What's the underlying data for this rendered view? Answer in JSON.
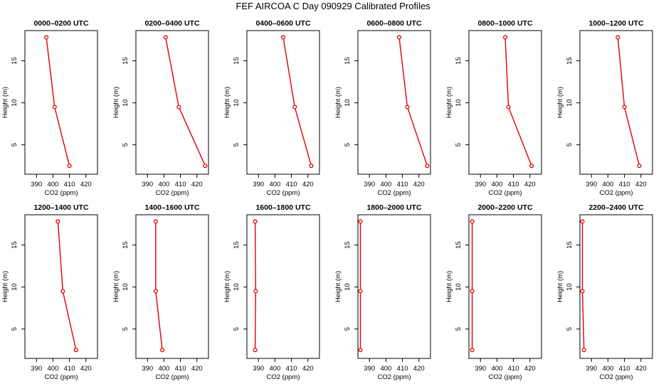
{
  "page": {
    "title": "FEF AIRCOA C  Day 090929  Calibrated Profiles"
  },
  "style": {
    "line_color": "#e00000",
    "axis_color": "#000000",
    "background": "#ffffff"
  },
  "chart_data": [
    {
      "type": "line",
      "title": "0000–0200 UTC",
      "xlabel": "CO2 (ppm)",
      "ylabel": "Height (m)",
      "xlim": [
        383,
        427
      ],
      "ylim": [
        1.5,
        18.6
      ],
      "xticks": [
        390,
        400,
        410,
        420
      ],
      "yticks": [
        5,
        10,
        15
      ],
      "series": [
        {
          "points": [
            {
              "x": 396,
              "y": 17.8
            },
            {
              "x": 401,
              "y": 9.5
            },
            {
              "x": 410,
              "y": 2.5
            }
          ]
        }
      ]
    },
    {
      "type": "line",
      "title": "0200–0400 UTC",
      "xlabel": "CO2 (ppm)",
      "ylabel": "Height (m)",
      "xlim": [
        383,
        427
      ],
      "ylim": [
        1.5,
        18.6
      ],
      "xticks": [
        390,
        400,
        410,
        420
      ],
      "yticks": [
        5,
        10,
        15
      ],
      "series": [
        {
          "points": [
            {
              "x": 401,
              "y": 17.8
            },
            {
              "x": 409,
              "y": 9.5
            },
            {
              "x": 425,
              "y": 2.5
            }
          ]
        }
      ]
    },
    {
      "type": "line",
      "title": "0400–0600 UTC",
      "xlabel": "CO2 (ppm)",
      "ylabel": "Height (m)",
      "xlim": [
        383,
        427
      ],
      "ylim": [
        1.5,
        18.6
      ],
      "xticks": [
        390,
        400,
        410,
        420
      ],
      "yticks": [
        5,
        10,
        15
      ],
      "series": [
        {
          "points": [
            {
              "x": 405,
              "y": 17.8
            },
            {
              "x": 412,
              "y": 9.5
            },
            {
              "x": 422,
              "y": 2.5
            }
          ]
        }
      ]
    },
    {
      "type": "line",
      "title": "0600–0800 UTC",
      "xlabel": "CO2 (ppm)",
      "ylabel": "Height (m)",
      "xlim": [
        383,
        427
      ],
      "ylim": [
        1.5,
        18.6
      ],
      "xticks": [
        390,
        400,
        410,
        420
      ],
      "yticks": [
        5,
        10,
        15
      ],
      "series": [
        {
          "points": [
            {
              "x": 408,
              "y": 17.8
            },
            {
              "x": 413,
              "y": 9.5
            },
            {
              "x": 425,
              "y": 2.5
            }
          ]
        }
      ]
    },
    {
      "type": "line",
      "title": "0800–1000 UTC",
      "xlabel": "CO2 (ppm)",
      "ylabel": "Height (m)",
      "xlim": [
        383,
        427
      ],
      "ylim": [
        1.5,
        18.6
      ],
      "xticks": [
        390,
        400,
        410,
        420
      ],
      "yticks": [
        5,
        10,
        15
      ],
      "series": [
        {
          "points": [
            {
              "x": 405,
              "y": 17.8
            },
            {
              "x": 407,
              "y": 9.5
            },
            {
              "x": 421,
              "y": 2.5
            }
          ]
        }
      ]
    },
    {
      "type": "line",
      "title": "1000–1200 UTC",
      "xlabel": "CO2 (ppm)",
      "ylabel": "Height (m)",
      "xlim": [
        383,
        427
      ],
      "ylim": [
        1.5,
        18.6
      ],
      "xticks": [
        390,
        400,
        410,
        420
      ],
      "yticks": [
        5,
        10,
        15
      ],
      "series": [
        {
          "points": [
            {
              "x": 406,
              "y": 17.8
            },
            {
              "x": 410,
              "y": 9.5
            },
            {
              "x": 419,
              "y": 2.5
            }
          ]
        }
      ]
    },
    {
      "type": "line",
      "title": "1200–1400 UTC",
      "xlabel": "CO2 (ppm)",
      "ylabel": "Height (m)",
      "xlim": [
        383,
        427
      ],
      "ylim": [
        1.5,
        18.6
      ],
      "xticks": [
        390,
        400,
        410,
        420
      ],
      "yticks": [
        5,
        10,
        15
      ],
      "series": [
        {
          "points": [
            {
              "x": 403,
              "y": 17.8
            },
            {
              "x": 406,
              "y": 9.5
            },
            {
              "x": 414,
              "y": 2.5
            }
          ]
        }
      ]
    },
    {
      "type": "line",
      "title": "1400–1600 UTC",
      "xlabel": "CO2 (ppm)",
      "ylabel": "Height (m)",
      "xlim": [
        383,
        427
      ],
      "ylim": [
        1.5,
        18.6
      ],
      "xticks": [
        390,
        400,
        410,
        420
      ],
      "yticks": [
        5,
        10,
        15
      ],
      "series": [
        {
          "points": [
            {
              "x": 395,
              "y": 17.8
            },
            {
              "x": 395,
              "y": 9.5
            },
            {
              "x": 399,
              "y": 2.5
            }
          ]
        }
      ]
    },
    {
      "type": "line",
      "title": "1600–1800 UTC",
      "xlabel": "CO2 (ppm)",
      "ylabel": "Height (m)",
      "xlim": [
        383,
        427
      ],
      "ylim": [
        1.5,
        18.6
      ],
      "xticks": [
        390,
        400,
        410,
        420
      ],
      "yticks": [
        5,
        10,
        15
      ],
      "series": [
        {
          "points": [
            {
              "x": 388,
              "y": 17.8
            },
            {
              "x": 388.3,
              "y": 9.5
            },
            {
              "x": 388,
              "y": 2.5
            }
          ]
        }
      ]
    },
    {
      "type": "line",
      "title": "1800–2000 UTC",
      "xlabel": "CO2 (ppm)",
      "ylabel": "Height (m)",
      "xlim": [
        383,
        427
      ],
      "ylim": [
        1.5,
        18.6
      ],
      "xticks": [
        390,
        400,
        410,
        420
      ],
      "yticks": [
        5,
        10,
        15
      ],
      "series": [
        {
          "points": [
            {
              "x": 384.5,
              "y": 17.8
            },
            {
              "x": 384.5,
              "y": 9.5
            },
            {
              "x": 384.5,
              "y": 2.5
            }
          ]
        }
      ]
    },
    {
      "type": "line",
      "title": "2000–2200 UTC",
      "xlabel": "CO2 (ppm)",
      "ylabel": "Height (m)",
      "xlim": [
        383,
        427
      ],
      "ylim": [
        1.5,
        18.6
      ],
      "xticks": [
        390,
        400,
        410,
        420
      ],
      "yticks": [
        5,
        10,
        15
      ],
      "series": [
        {
          "points": [
            {
              "x": 385,
              "y": 17.8
            },
            {
              "x": 385,
              "y": 9.5
            },
            {
              "x": 385,
              "y": 2.5
            }
          ]
        }
      ]
    },
    {
      "type": "line",
      "title": "2200–2400 UTC",
      "xlabel": "CO2 (ppm)",
      "ylabel": "Height (m)",
      "xlim": [
        383,
        427
      ],
      "ylim": [
        1.5,
        18.6
      ],
      "xticks": [
        390,
        400,
        410,
        420
      ],
      "yticks": [
        5,
        10,
        15
      ],
      "series": [
        {
          "points": [
            {
              "x": 384.5,
              "y": 17.8
            },
            {
              "x": 384.5,
              "y": 9.5
            },
            {
              "x": 385.5,
              "y": 2.5
            }
          ]
        }
      ]
    }
  ]
}
